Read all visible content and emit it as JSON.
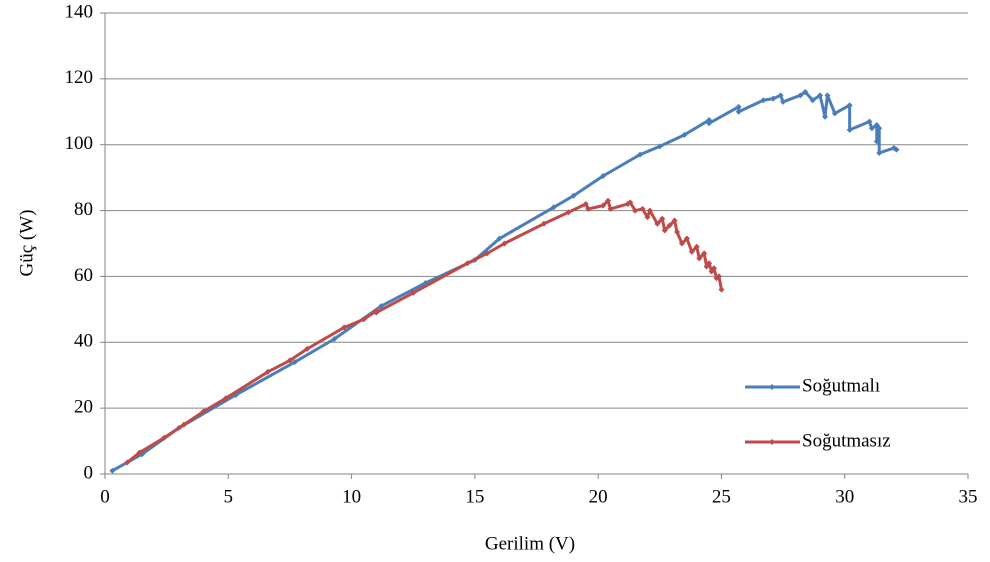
{
  "chart_data": {
    "type": "line",
    "x_label": "Gerilim (V)",
    "y_label": "Güç (W)",
    "xlim": [
      0,
      35
    ],
    "xticks": [
      0,
      5,
      10,
      15,
      20,
      25,
      30,
      35
    ],
    "ylim": [
      0,
      140
    ],
    "yticks": [
      0,
      20,
      40,
      60,
      80,
      100,
      120,
      140
    ],
    "grid": true,
    "legend": "lower right",
    "series": [
      {
        "name": "Soğutmalı",
        "color": "#4a7ebb",
        "x": [
          0.3,
          1.5,
          3,
          5.3,
          7.7,
          9.3,
          11.2,
          13,
          15,
          16,
          18.2,
          19,
          20.2,
          21.7,
          22.5,
          23.5,
          24.5,
          24.5,
          25.7,
          25.7,
          26.7,
          27.1,
          27.4,
          27.5,
          28.2,
          28.4,
          28.7,
          29,
          29.2,
          29.3,
          29.6,
          30.2,
          30.2,
          31,
          31.1,
          31.3,
          31.3,
          31.4,
          31.4,
          32,
          32.1
        ],
        "values": [
          1,
          6,
          14,
          24,
          34,
          41,
          51,
          58,
          65,
          71.5,
          81,
          84.5,
          90.5,
          97,
          99.5,
          103,
          107.5,
          106.5,
          111.5,
          110,
          113.5,
          114,
          115,
          113,
          115,
          116,
          113.5,
          115,
          108.5,
          115,
          109.5,
          112,
          104.5,
          107,
          105,
          106,
          101,
          105,
          97.5,
          99,
          98.5
        ]
      },
      {
        "name": "Soğutmasız",
        "color": "#be4b48",
        "x": [
          0.9,
          1.4,
          2.4,
          3.2,
          4,
          4.9,
          6.6,
          7.5,
          8.2,
          9.7,
          10.5,
          11,
          11,
          12.5,
          14.7,
          15.5,
          16.2,
          17.8,
          18.8,
          19.5,
          19.6,
          20.2,
          20.4,
          20.5,
          21.2,
          21.3,
          21.5,
          21.8,
          22,
          22.1,
          22.4,
          22.6,
          22.7,
          22.9,
          23.1,
          23.2,
          23.4,
          23.6,
          23.8,
          24,
          24.1,
          24.3,
          24.4,
          24.5,
          24.6,
          24.7,
          24.8,
          24.9,
          25
        ],
        "values": [
          3.5,
          6.5,
          11,
          15,
          19,
          23,
          31,
          34.5,
          38,
          44.5,
          47,
          49.5,
          49,
          55,
          64,
          67,
          70,
          76,
          79.5,
          82,
          80.5,
          81.5,
          83,
          80.5,
          82,
          82.5,
          80,
          80.5,
          78,
          80,
          76,
          77.5,
          74,
          75.5,
          77,
          73.5,
          70,
          71.5,
          67.5,
          69,
          65.5,
          67,
          63,
          64,
          61.5,
          62.5,
          59.5,
          60,
          56
        ]
      }
    ]
  }
}
